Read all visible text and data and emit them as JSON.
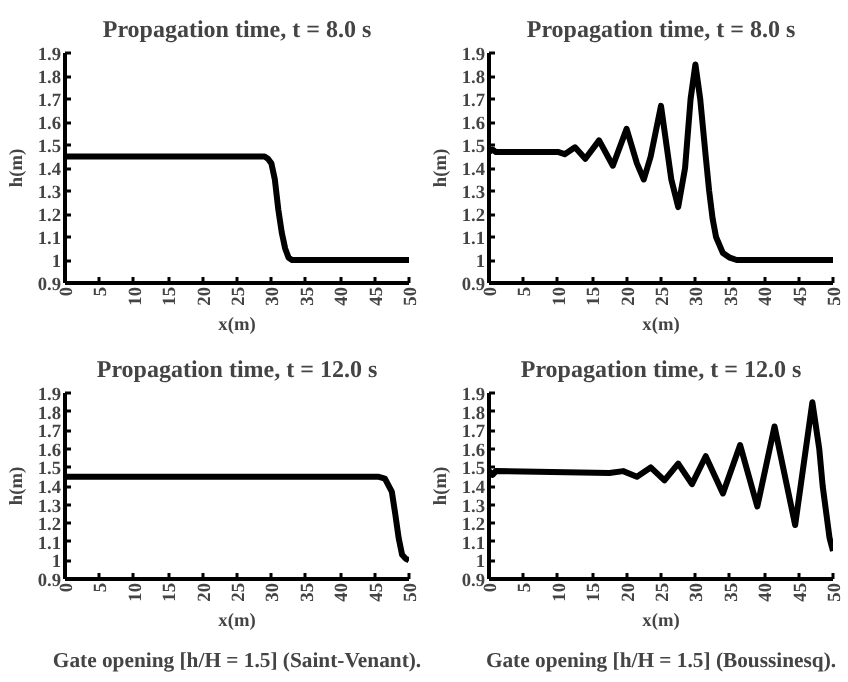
{
  "chart_data": [
    {
      "type": "line",
      "title": "Propagation time, t = 8.0 s",
      "xlabel": "x(m)",
      "ylabel": "h(m)",
      "xlim": [
        0,
        50
      ],
      "xticks": [
        0,
        5,
        10,
        15,
        20,
        25,
        30,
        35,
        40,
        45,
        50
      ],
      "ylim": [
        0.9,
        1.9
      ],
      "yticks": [
        0.9,
        1,
        1.1,
        1.2,
        1.3,
        1.4,
        1.5,
        1.6,
        1.7,
        1.8,
        1.9
      ],
      "grid": false,
      "line_style": "solid",
      "marker": "none",
      "series": [
        {
          "color": "#000000",
          "x": [
            0,
            29,
            29.5,
            30,
            30.5,
            31,
            31.5,
            32,
            32.5,
            33,
            50
          ],
          "values": [
            1.45,
            1.45,
            1.44,
            1.42,
            1.35,
            1.22,
            1.12,
            1.05,
            1.01,
            1.0,
            1.0
          ]
        }
      ]
    },
    {
      "type": "line",
      "title": "Propagation time, t = 8.0 s",
      "xlabel": "x(m)",
      "ylabel": "h(m)",
      "xlim": [
        0,
        50
      ],
      "xticks": [
        0,
        5,
        10,
        15,
        20,
        25,
        30,
        35,
        40,
        45,
        50
      ],
      "ylim": [
        0.9,
        1.9
      ],
      "yticks": [
        0.9,
        1,
        1.1,
        1.2,
        1.3,
        1.4,
        1.5,
        1.6,
        1.7,
        1.8,
        1.9
      ],
      "grid": false,
      "line_style": "solid",
      "marker": "none",
      "series": [
        {
          "color": "#000000",
          "x": [
            0,
            0.5,
            1,
            10,
            11,
            12.5,
            14,
            16,
            18,
            20,
            21.5,
            22.5,
            23.5,
            25,
            26.5,
            27.5,
            28.5,
            29.3,
            30,
            30.7,
            31.5,
            32,
            32.5,
            33,
            34,
            35,
            36,
            50
          ],
          "values": [
            1.47,
            1.48,
            1.47,
            1.47,
            1.46,
            1.49,
            1.44,
            1.52,
            1.41,
            1.57,
            1.42,
            1.35,
            1.45,
            1.67,
            1.35,
            1.23,
            1.4,
            1.7,
            1.85,
            1.7,
            1.45,
            1.3,
            1.18,
            1.1,
            1.03,
            1.01,
            1.0,
            1.0
          ]
        }
      ]
    },
    {
      "type": "line",
      "title": "Propagation time, t = 12.0 s",
      "xlabel": "x(m)",
      "ylabel": "h(m)",
      "xlim": [
        0,
        50
      ],
      "xticks": [
        0,
        5,
        10,
        15,
        20,
        25,
        30,
        35,
        40,
        45,
        50
      ],
      "ylim": [
        0.9,
        1.9
      ],
      "yticks": [
        0.9,
        1,
        1.1,
        1.2,
        1.3,
        1.4,
        1.5,
        1.6,
        1.7,
        1.8,
        1.9
      ],
      "grid": false,
      "line_style": "solid",
      "marker": "none",
      "annotations": [
        "Gate opening [h/H = 1.5] (Saint-Venant)."
      ],
      "series": [
        {
          "color": "#000000",
          "x": [
            0,
            45.5,
            46.5,
            47.5,
            48,
            48.5,
            49,
            49.5,
            50
          ],
          "values": [
            1.45,
            1.45,
            1.44,
            1.37,
            1.25,
            1.12,
            1.03,
            1.01,
            1.0
          ]
        }
      ]
    },
    {
      "type": "line",
      "title": "Propagation time, t = 12.0 s",
      "xlabel": "x(m)",
      "ylabel": "h(m)",
      "xlim": [
        0,
        50
      ],
      "xticks": [
        0,
        5,
        10,
        15,
        20,
        25,
        30,
        35,
        40,
        45,
        50
      ],
      "ylim": [
        0.9,
        1.9
      ],
      "yticks": [
        0.9,
        1,
        1.1,
        1.2,
        1.3,
        1.4,
        1.5,
        1.6,
        1.7,
        1.8,
        1.9
      ],
      "grid": false,
      "line_style": "solid",
      "marker": "none",
      "annotations": [
        "Gate opening [h/H = 1.5] (Boussinesq)."
      ],
      "series": [
        {
          "color": "#000000",
          "x": [
            0,
            0.5,
            1,
            17.5,
            19.5,
            21.5,
            23.5,
            25.5,
            27.5,
            29.5,
            31.5,
            34,
            36.5,
            39,
            41.5,
            44.5,
            47,
            48,
            48.5,
            49.5,
            50
          ],
          "values": [
            1.48,
            1.46,
            1.48,
            1.47,
            1.48,
            1.45,
            1.5,
            1.43,
            1.52,
            1.41,
            1.56,
            1.36,
            1.62,
            1.29,
            1.72,
            1.19,
            1.85,
            1.6,
            1.4,
            1.12,
            1.05
          ]
        }
      ]
    }
  ]
}
